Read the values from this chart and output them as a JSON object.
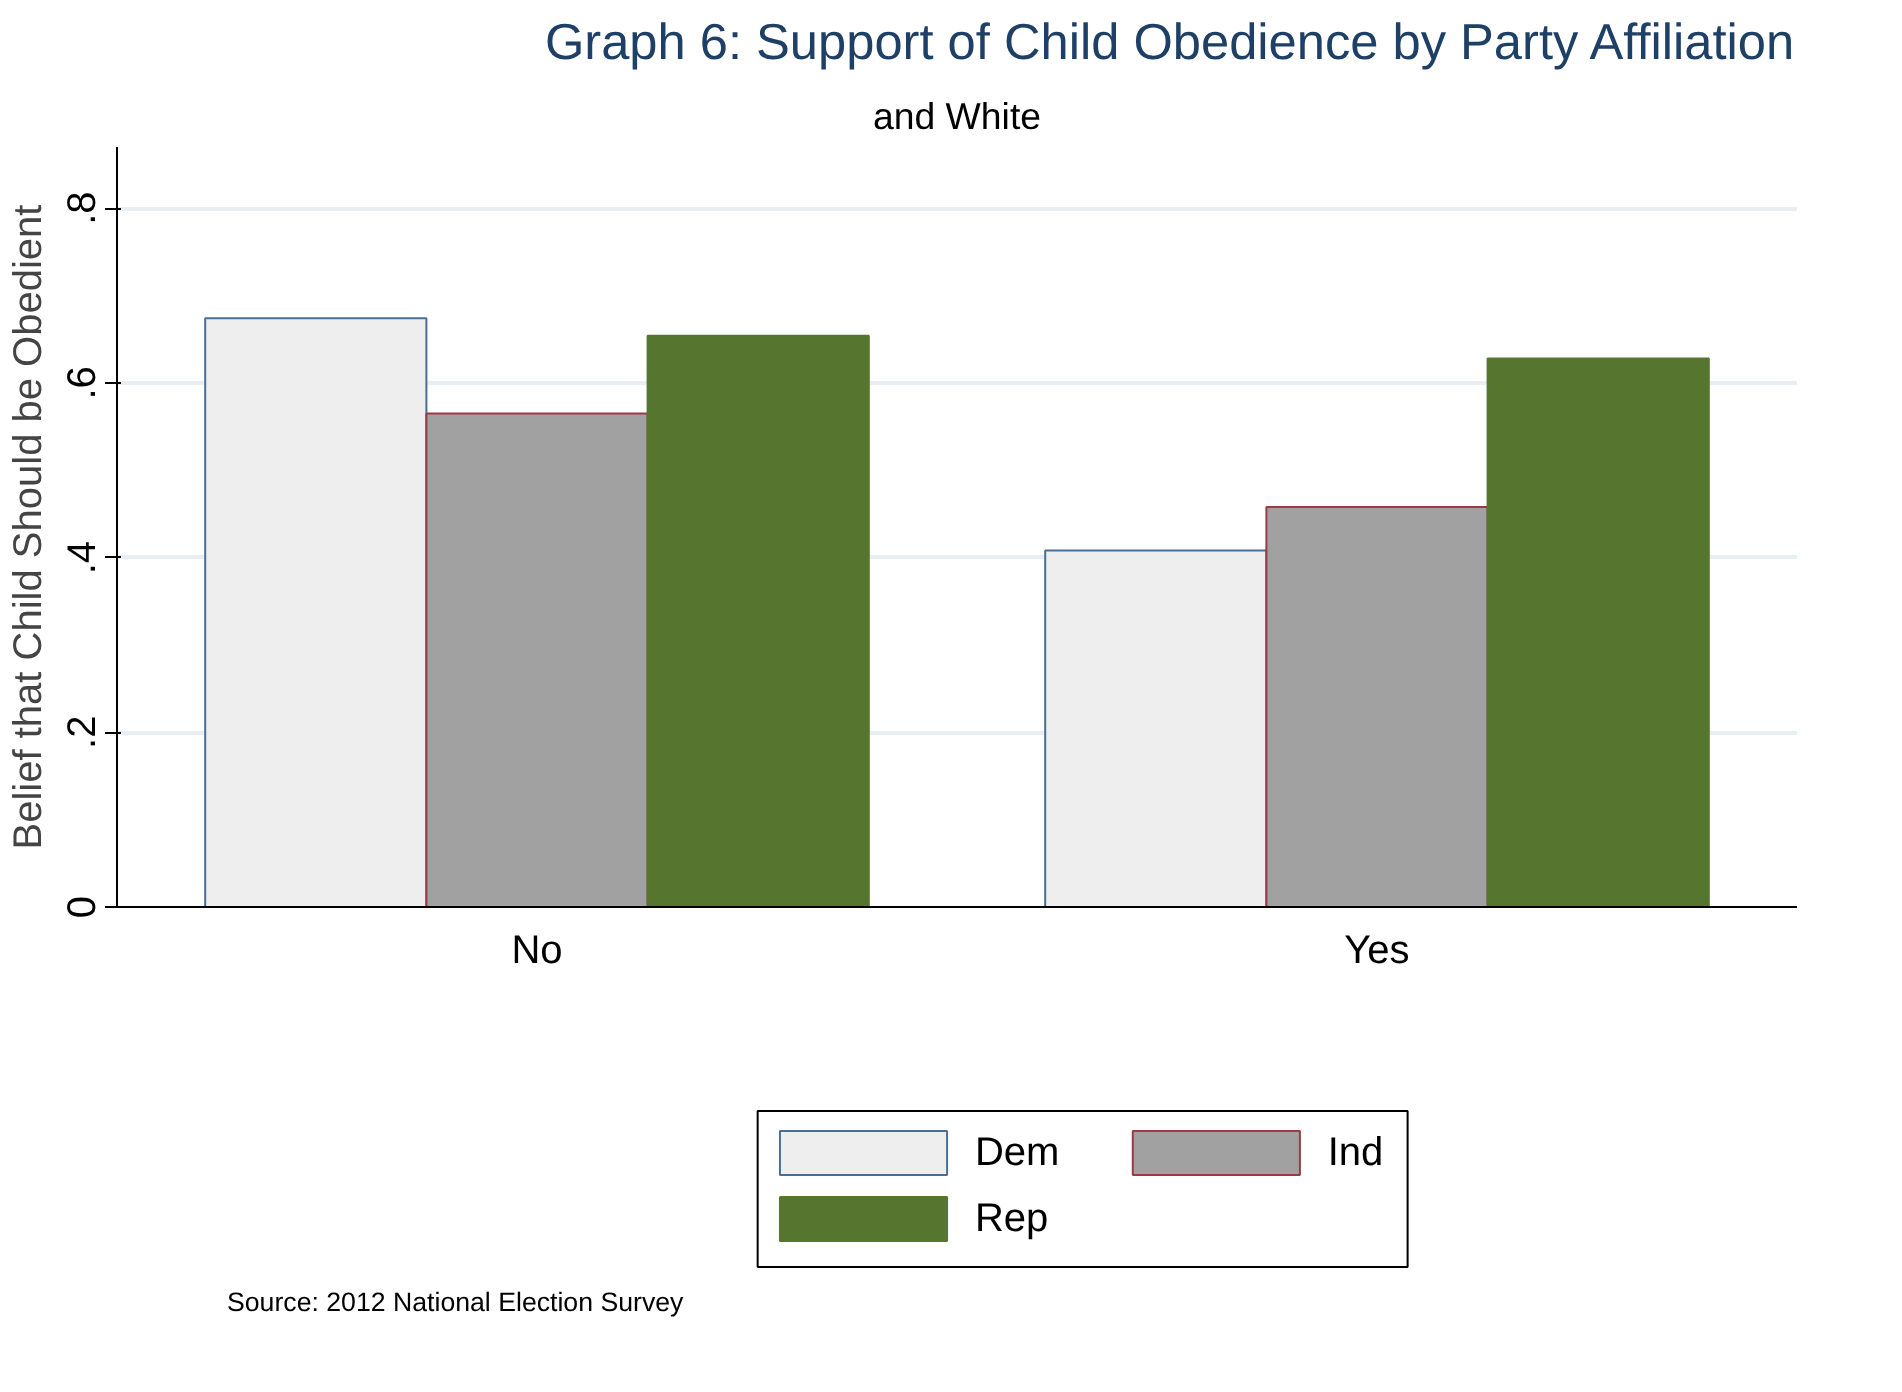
{
  "chart_data": {
    "type": "bar",
    "title": "Graph 6: Support of Child Obedience by Party Affiliation",
    "subtitle": "and White",
    "ylabel": "Belief that Child Should be Obedient",
    "categories": [
      "No",
      "Yes"
    ],
    "series": [
      {
        "name": "Dem",
        "color": "#eeeeee",
        "values": [
          0.674,
          0.408
        ]
      },
      {
        "name": "Ind",
        "color": "#a1a1a1",
        "values": [
          0.565,
          0.458
        ]
      },
      {
        "name": "Rep",
        "color": "#56752f",
        "values": [
          0.654,
          0.628
        ]
      }
    ],
    "ylim": [
      0,
      0.87
    ],
    "yticks": [
      0,
      {
        "value": 0.2,
        "label": ".2"
      },
      {
        "value": 0.4,
        "label": ".4"
      },
      {
        "value": 0.6,
        "label": ".6"
      },
      {
        "value": 0.8,
        "label": ".8"
      }
    ],
    "grid": "y",
    "legend": "bottom",
    "annotations": [
      "Source: 2012 National Election Survey"
    ]
  }
}
